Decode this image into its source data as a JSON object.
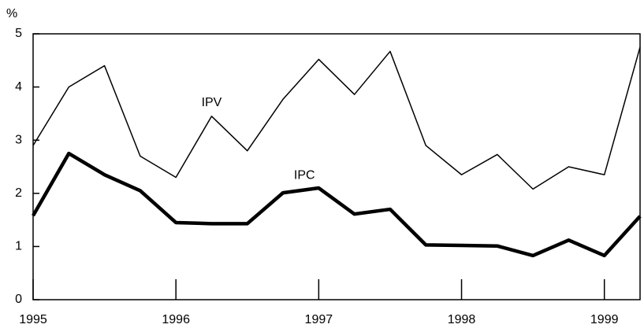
{
  "chart_data": {
    "type": "line",
    "y_unit_label": "%",
    "x": [
      1995,
      1995.25,
      1995.5,
      1995.75,
      1996,
      1996.25,
      1996.5,
      1996.75,
      1997,
      1997.25,
      1997.5,
      1997.75,
      1998,
      1998.25,
      1998.5,
      1998.75,
      1999,
      1999.25
    ],
    "series": [
      {
        "name": "IPV",
        "color": "#000000",
        "values": [
          2.9,
          4.0,
          4.4,
          2.7,
          2.3,
          3.45,
          2.8,
          3.77,
          4.52,
          3.86,
          4.67,
          2.9,
          2.35,
          2.73,
          2.08,
          2.5,
          2.35,
          4.75
        ]
      },
      {
        "name": "IPC",
        "color": "#000000",
        "values": [
          1.58,
          2.75,
          2.35,
          2.05,
          1.45,
          1.43,
          1.43,
          2.01,
          2.1,
          1.61,
          1.7,
          1.03,
          1.02,
          1.01,
          0.83,
          1.12,
          0.83,
          1.57
        ]
      }
    ],
    "annotations": [
      {
        "text": "IPV",
        "x": 1996.25,
        "y": 3.7
      },
      {
        "text": "IPC",
        "x": 1996.9,
        "y": 2.33
      }
    ],
    "xlim": [
      1995,
      1999.25
    ],
    "xticks": [
      1995,
      1996,
      1997,
      1998,
      1999
    ],
    "ylim": [
      0,
      5
    ],
    "yticks": [
      0,
      1,
      2,
      3,
      4,
      5
    ]
  }
}
